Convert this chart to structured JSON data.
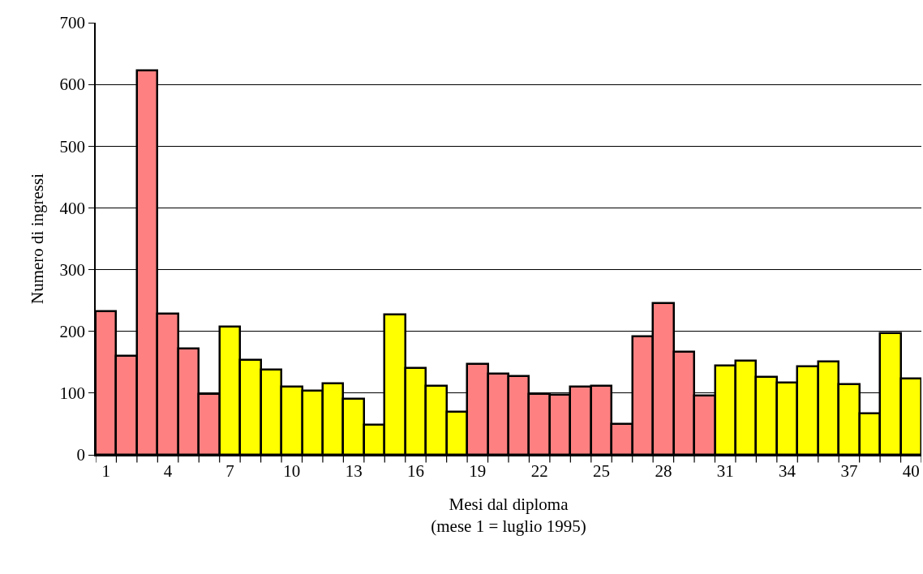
{
  "chart_data": {
    "type": "bar",
    "xlabel": "Mesi dal diploma\n(mese 1 = luglio 1995)",
    "ylabel": "Numero di ingressi",
    "categories": [
      "1",
      null,
      null,
      "4",
      null,
      null,
      "7",
      null,
      null,
      "10",
      null,
      null,
      "13",
      null,
      null,
      "16",
      null,
      null,
      "19",
      null,
      null,
      "22",
      null,
      null,
      "25",
      null,
      null,
      "28",
      null,
      null,
      "31",
      null,
      null,
      "34",
      null,
      null,
      "37",
      null,
      null,
      "40"
    ],
    "values": [
      232,
      160,
      623,
      228,
      172,
      99,
      207,
      154,
      138,
      110,
      104,
      115,
      90,
      49,
      227,
      140,
      111,
      70,
      147,
      131,
      127,
      99,
      97,
      110,
      112,
      50,
      192,
      246,
      167,
      96,
      144,
      153,
      126,
      117,
      143,
      151,
      114,
      67,
      197,
      124
    ],
    "colors": [
      "#ff8080",
      "#ff8080",
      "#ff8080",
      "#ff8080",
      "#ff8080",
      "#ff8080",
      "#ffff00",
      "#ffff00",
      "#ffff00",
      "#ffff00",
      "#ffff00",
      "#ffff00",
      "#ffff00",
      "#ffff00",
      "#ffff00",
      "#ffff00",
      "#ffff00",
      "#ffff00",
      "#ff8080",
      "#ff8080",
      "#ff8080",
      "#ff8080",
      "#ff8080",
      "#ff8080",
      "#ff8080",
      "#ff8080",
      "#ff8080",
      "#ff8080",
      "#ff8080",
      "#ff8080",
      "#ffff00",
      "#ffff00",
      "#ffff00",
      "#ffff00",
      "#ffff00",
      "#ffff00",
      "#ffff00",
      "#ffff00",
      "#ffff00",
      "#ffff00"
    ],
    "ylim": [
      0,
      700
    ],
    "yticks": [
      0,
      100,
      200,
      300,
      400,
      500,
      600,
      700
    ],
    "grid": "y",
    "legend": false
  }
}
